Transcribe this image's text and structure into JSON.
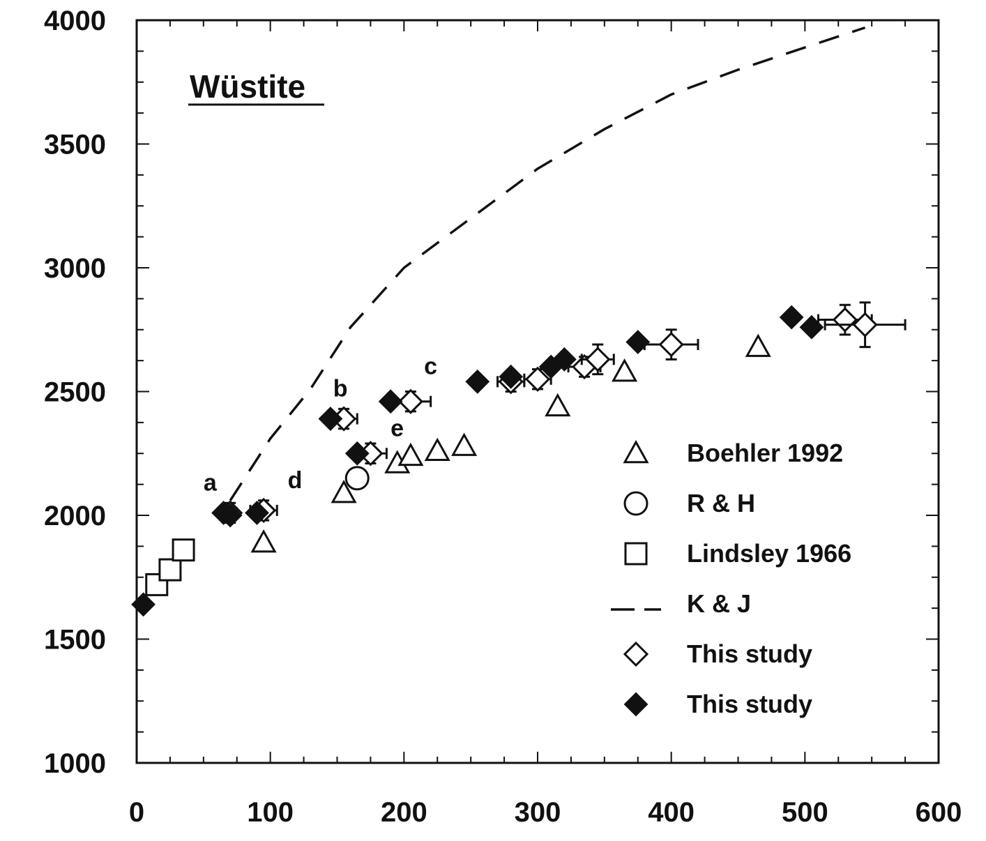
{
  "chart_data": {
    "type": "scatter",
    "title": "Wüstite",
    "xlabel": "",
    "ylabel": "",
    "xlim": [
      0,
      600
    ],
    "ylim": [
      1000,
      4000
    ],
    "xticks": [
      0,
      100,
      200,
      300,
      400,
      500,
      600
    ],
    "yticks": [
      1000,
      1500,
      2000,
      2500,
      3000,
      3500,
      4000
    ],
    "legend_position": "bottom-right",
    "series": [
      {
        "name": "Boehler 1992",
        "marker": "triangle-open",
        "points": [
          {
            "x": 95,
            "y": 1890
          },
          {
            "x": 155,
            "y": 2090
          },
          {
            "x": 195,
            "y": 2210
          },
          {
            "x": 205,
            "y": 2240
          },
          {
            "x": 225,
            "y": 2260
          },
          {
            "x": 245,
            "y": 2280
          },
          {
            "x": 315,
            "y": 2440
          },
          {
            "x": 365,
            "y": 2580
          },
          {
            "x": 465,
            "y": 2680
          }
        ]
      },
      {
        "name": "R & H",
        "marker": "circle-open",
        "points": [
          {
            "x": 165,
            "y": 2150
          }
        ]
      },
      {
        "name": "Lindsley 1966",
        "marker": "square-open",
        "points": [
          {
            "x": 15,
            "y": 1720
          },
          {
            "x": 25,
            "y": 1780
          },
          {
            "x": 35,
            "y": 1860
          }
        ]
      },
      {
        "name": "K & J",
        "marker": "dashed-line",
        "points": [
          {
            "x": 70,
            "y": 2060
          },
          {
            "x": 100,
            "y": 2310
          },
          {
            "x": 130,
            "y": 2510
          },
          {
            "x": 160,
            "y": 2760
          },
          {
            "x": 200,
            "y": 3000
          },
          {
            "x": 250,
            "y": 3200
          },
          {
            "x": 300,
            "y": 3400
          },
          {
            "x": 350,
            "y": 3560
          },
          {
            "x": 400,
            "y": 3700
          },
          {
            "x": 450,
            "y": 3800
          },
          {
            "x": 500,
            "y": 3890
          },
          {
            "x": 545,
            "y": 3970
          }
        ]
      },
      {
        "name": "This study",
        "marker": "diamond-open",
        "points": [
          {
            "x": 70,
            "y": 2010,
            "xerr": 5,
            "yerr": 40
          },
          {
            "x": 95,
            "y": 2020,
            "xerr": 10,
            "yerr": 40
          },
          {
            "x": 155,
            "y": 2390,
            "xerr": 10,
            "yerr": 40
          },
          {
            "x": 175,
            "y": 2250,
            "xerr": 12,
            "yerr": 40
          },
          {
            "x": 205,
            "y": 2460,
            "xerr": 15,
            "yerr": 40
          },
          {
            "x": 280,
            "y": 2540,
            "xerr": 10,
            "yerr": 40
          },
          {
            "x": 300,
            "y": 2550,
            "xerr": 10,
            "yerr": 40
          },
          {
            "x": 335,
            "y": 2600,
            "xerr": 12,
            "yerr": 40
          },
          {
            "x": 345,
            "y": 2630,
            "xerr": 12,
            "yerr": 60
          },
          {
            "x": 400,
            "y": 2690,
            "xerr": 20,
            "yerr": 60
          },
          {
            "x": 530,
            "y": 2790,
            "xerr": 20,
            "yerr": 60
          },
          {
            "x": 545,
            "y": 2770,
            "xerr": 30,
            "yerr": 90
          }
        ]
      },
      {
        "name": "This study",
        "marker": "diamond-filled",
        "points": [
          {
            "x": 5,
            "y": 1640
          },
          {
            "x": 65,
            "y": 2010
          },
          {
            "x": 70,
            "y": 2000
          },
          {
            "x": 90,
            "y": 2010
          },
          {
            "x": 145,
            "y": 2390
          },
          {
            "x": 165,
            "y": 2250
          },
          {
            "x": 190,
            "y": 2460
          },
          {
            "x": 255,
            "y": 2540
          },
          {
            "x": 280,
            "y": 2560
          },
          {
            "x": 310,
            "y": 2600
          },
          {
            "x": 320,
            "y": 2630
          },
          {
            "x": 375,
            "y": 2700
          },
          {
            "x": 490,
            "y": 2800
          },
          {
            "x": 505,
            "y": 2760
          }
        ]
      }
    ],
    "annotations": [
      {
        "text": "a",
        "x": 50,
        "y": 2100
      },
      {
        "text": "b",
        "x": 147,
        "y": 2480
      },
      {
        "text": "c",
        "x": 215,
        "y": 2570
      },
      {
        "text": "d",
        "x": 113,
        "y": 2110
      },
      {
        "text": "e",
        "x": 190,
        "y": 2320
      }
    ]
  }
}
